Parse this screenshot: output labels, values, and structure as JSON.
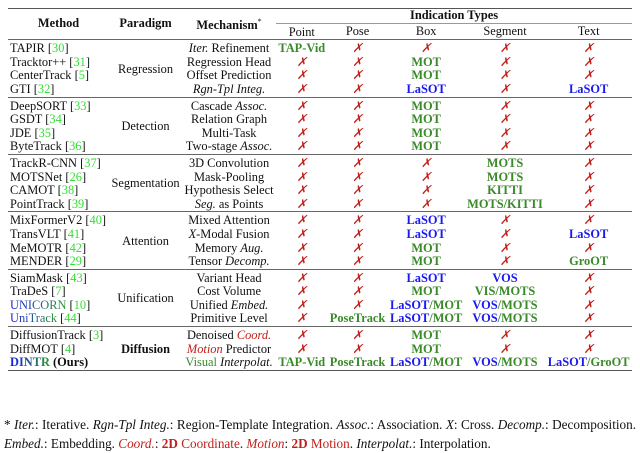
{
  "header": {
    "method": "Method",
    "paradigm": "Paradigm",
    "mechanism": "Mechanism",
    "mechanism_mark": "*",
    "indication_types": "Indication Types",
    "columns": [
      "Point",
      "Pose",
      "Box",
      "Segment",
      "Text"
    ]
  },
  "cross_symbol": "✗",
  "colors": {
    "green": "#3a8a2a",
    "blue": "#1a1aee",
    "red": "#c0201a",
    "citation": "#33dd33"
  },
  "groups": [
    {
      "paradigm": "Regression",
      "rows": [
        {
          "method": "TAPIR",
          "cite": "30",
          "mech": [
            {
              "t": "Iter.",
              "i": true
            },
            {
              "t": " Refinement"
            }
          ],
          "cells": [
            [
              [
                "TAP-Vid",
                "g"
              ]
            ],
            "x",
            "x",
            "x",
            "x"
          ]
        },
        {
          "method": "Tracktor++",
          "cite": "31",
          "mech": [
            {
              "t": "Regression Head"
            }
          ],
          "cells": [
            "x",
            "x",
            [
              [
                "MOT",
                "g"
              ]
            ],
            "x",
            "x"
          ]
        },
        {
          "method": "CenterTrack",
          "cite": "5",
          "mech": [
            {
              "t": "Offset Prediction"
            }
          ],
          "cells": [
            "x",
            "x",
            [
              [
                "MOT",
                "g"
              ]
            ],
            "x",
            "x"
          ]
        },
        {
          "method": "GTI",
          "cite": "32",
          "mech": [
            {
              "t": "Rgn-Tpl Integ.",
              "i": true
            }
          ],
          "cells": [
            "x",
            "x",
            [
              [
                "LaSOT",
                "b"
              ]
            ],
            "x",
            [
              [
                "LaSOT",
                "b"
              ]
            ]
          ]
        }
      ]
    },
    {
      "paradigm": "Detection",
      "rows": [
        {
          "method": "DeepSORT",
          "cite": "33",
          "mech": [
            {
              "t": "Cascade "
            },
            {
              "t": "Assoc.",
              "i": true
            }
          ],
          "cells": [
            "x",
            "x",
            [
              [
                "MOT",
                "g"
              ]
            ],
            "x",
            "x"
          ]
        },
        {
          "method": "GSDT",
          "cite": "34",
          "mech": [
            {
              "t": "Relation Graph"
            }
          ],
          "cells": [
            "x",
            "x",
            [
              [
                "MOT",
                "g"
              ]
            ],
            "x",
            "x"
          ]
        },
        {
          "method": "JDE",
          "cite": "35",
          "mech": [
            {
              "t": "Multi-Task"
            }
          ],
          "cells": [
            "x",
            "x",
            [
              [
                "MOT",
                "g"
              ]
            ],
            "x",
            "x"
          ]
        },
        {
          "method": "ByteTrack",
          "cite": "36",
          "mech": [
            {
              "t": "Two-stage "
            },
            {
              "t": "Assoc.",
              "i": true
            }
          ],
          "cells": [
            "x",
            "x",
            [
              [
                "MOT",
                "g"
              ]
            ],
            "x",
            "x"
          ]
        }
      ]
    },
    {
      "paradigm": "Segmentation",
      "rows": [
        {
          "method": "TrackR-CNN",
          "cite": "37",
          "mech": [
            {
              "t": "3D Convolution"
            }
          ],
          "cells": [
            "x",
            "x",
            "x",
            [
              [
                "MOTS",
                "g"
              ]
            ],
            "x"
          ]
        },
        {
          "method": "MOTSNet",
          "cite": "26",
          "mech": [
            {
              "t": "Mask-Pooling"
            }
          ],
          "cells": [
            "x",
            "x",
            "x",
            [
              [
                "MOTS",
                "g"
              ]
            ],
            "x"
          ]
        },
        {
          "method": "CAMOT",
          "cite": "38",
          "mech": [
            {
              "t": "Hypothesis Select"
            }
          ],
          "cells": [
            "x",
            "x",
            "x",
            [
              [
                "KITTI",
                "g"
              ]
            ],
            "x"
          ]
        },
        {
          "method": "PointTrack",
          "cite": "39",
          "mech": [
            {
              "t": "Seg.",
              "i": true
            },
            {
              "t": " as Points"
            }
          ],
          "cells": [
            "x",
            "x",
            "x",
            [
              [
                "MOTS/KITTI",
                "g"
              ]
            ],
            "x"
          ]
        }
      ]
    },
    {
      "paradigm": "Attention",
      "rows": [
        {
          "method": "MixFormerV2",
          "cite": "40",
          "mech": [
            {
              "t": "Mixed Attention"
            }
          ],
          "cells": [
            "x",
            "x",
            [
              [
                "LaSOT",
                "b"
              ]
            ],
            "x",
            "x"
          ]
        },
        {
          "method": "TransVLT",
          "cite": "41",
          "mech": [
            {
              "t": "X",
              "i": true
            },
            {
              "t": "-Modal Fusion"
            }
          ],
          "cells": [
            "x",
            "x",
            [
              [
                "LaSOT",
                "b"
              ]
            ],
            "x",
            [
              [
                "LaSOT",
                "b"
              ]
            ]
          ]
        },
        {
          "method": "MeMOTR",
          "cite": "42",
          "mech": [
            {
              "t": "Memory "
            },
            {
              "t": "Aug.",
              "i": true
            }
          ],
          "cells": [
            "x",
            "x",
            [
              [
                "MOT",
                "g"
              ]
            ],
            "x",
            "x"
          ]
        },
        {
          "method": "MENDER",
          "cite": "29",
          "mech": [
            {
              "t": "Tensor "
            },
            {
              "t": "Decomp.",
              "i": true
            }
          ],
          "cells": [
            "x",
            "x",
            [
              [
                "MOT",
                "g"
              ]
            ],
            "x",
            [
              [
                "GroOT",
                "g"
              ]
            ]
          ]
        }
      ]
    },
    {
      "paradigm": "Unification",
      "rows": [
        {
          "method": "SiamMask",
          "cite": "43",
          "mech": [
            {
              "t": "Variant Head"
            }
          ],
          "cells": [
            "x",
            "x",
            [
              [
                "LaSOT",
                "b"
              ]
            ],
            [
              [
                "VOS",
                "b"
              ]
            ],
            "x"
          ]
        },
        {
          "method": "TraDeS",
          "cite": "7",
          "mech": [
            {
              "t": "Cost Volume"
            }
          ],
          "cells": [
            "x",
            "x",
            [
              [
                "MOT",
                "g"
              ]
            ],
            [
              [
                "VIS/MOTS",
                "g"
              ]
            ],
            "x"
          ]
        },
        {
          "method": "UNICORN",
          "cite": "10",
          "grad": true,
          "mech": [
            {
              "t": "Unified "
            },
            {
              "t": "Embed.",
              "i": true
            }
          ],
          "cells": [
            "x",
            "x",
            [
              [
                "LaSOT",
                "b"
              ],
              [
                "/MOT",
                "g"
              ]
            ],
            [
              [
                "VOS",
                "b"
              ],
              [
                "/MOTS",
                "g"
              ]
            ],
            "x"
          ]
        },
        {
          "method": "UniTrack",
          "cite": "44",
          "grad": true,
          "mech": [
            {
              "t": "Primitive Level"
            }
          ],
          "cells": [
            "x",
            [
              [
                "PoseTrack",
                "g"
              ]
            ],
            [
              [
                "LaSOT",
                "b"
              ],
              [
                "/MOT",
                "g"
              ]
            ],
            [
              [
                "VOS",
                "b"
              ],
              [
                "/MOTS",
                "g"
              ]
            ],
            "x"
          ]
        }
      ]
    },
    {
      "paradigm": "Diffusion",
      "bold": true,
      "rows": [
        {
          "method": "DiffusionTrack",
          "cite": "3",
          "mech": [
            {
              "t": "Denoised "
            },
            {
              "t": "Coord.",
              "i": true,
              "c": "red"
            }
          ],
          "cells": [
            "x",
            "x",
            [
              [
                "MOT",
                "g"
              ]
            ],
            "x",
            "x"
          ]
        },
        {
          "method": "DiffMOT",
          "cite": "4",
          "mech": [
            {
              "t": "Motion",
              "i": true,
              "c": "red"
            },
            {
              "t": " Predictor"
            }
          ],
          "cells": [
            "x",
            "x",
            [
              [
                "MOT",
                "g"
              ]
            ],
            "x",
            "x"
          ]
        },
        {
          "method": "DINTR",
          "suffix": " (Ours)",
          "grad": true,
          "bold": true,
          "mech": [
            {
              "t": "Visual ",
              "c": "grn"
            },
            {
              "t": "Interpolat.",
              "i": true
            }
          ],
          "cells": [
            [
              [
                "TAP-Vid",
                "g"
              ]
            ],
            [
              [
                "PoseTrack",
                "g"
              ]
            ],
            [
              [
                "LaSOT",
                "b"
              ],
              [
                "/MOT",
                "g"
              ]
            ],
            [
              [
                "VOS",
                "b"
              ],
              [
                "/MOTS",
                "g"
              ]
            ],
            [
              [
                "LaSOT",
                "b"
              ],
              [
                "/GroOT",
                "g"
              ]
            ]
          ]
        }
      ]
    }
  ],
  "footnote": [
    {
      "t": "* ",
      "i": false
    },
    {
      "t": "Iter.",
      "i": true
    },
    {
      "t": ": Iterative. "
    },
    {
      "t": "Rgn-Tpl Integ.",
      "i": true
    },
    {
      "t": ": Region-Template Integration. "
    },
    {
      "t": "Assoc.",
      "i": true
    },
    {
      "t": ": Association. "
    },
    {
      "t": "X",
      "i": true
    },
    {
      "t": ": Cross. "
    },
    {
      "t": "Decomp.",
      "i": true
    },
    {
      "t": ": Decomposition. "
    },
    {
      "t": "Embed.",
      "i": true
    },
    {
      "t": ": Embedding. "
    },
    {
      "t": "Coord.",
      "i": true,
      "c": "red"
    },
    {
      "t": ": "
    },
    {
      "t": "2D",
      "b": true,
      "c": "red"
    },
    {
      "t": " Coordinate",
      "c": "red"
    },
    {
      "t": ". "
    },
    {
      "t": "Motion",
      "i": true,
      "c": "red"
    },
    {
      "t": ": "
    },
    {
      "t": "2D",
      "b": true,
      "c": "red"
    },
    {
      "t": " Motion",
      "c": "red"
    },
    {
      "t": ". "
    },
    {
      "t": "Interpolat.",
      "i": true
    },
    {
      "t": ": Interpolation."
    }
  ]
}
